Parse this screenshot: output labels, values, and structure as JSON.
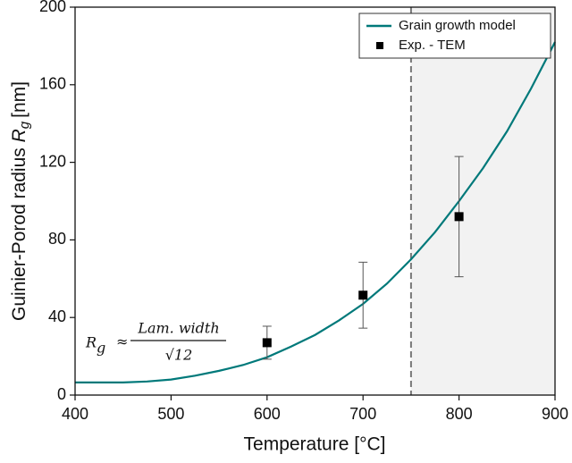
{
  "chart_data": {
    "type": "line",
    "xlabel": "Temperature [°C]",
    "ylabel": "Guinier-Porod radius",
    "ylabel_symbol": "R",
    "ylabel_subscript": "g",
    "ylabel_unit": "[nm]",
    "xlim": [
      400,
      900
    ],
    "xticks": [
      400,
      500,
      600,
      700,
      800,
      900
    ],
    "ylim": [
      0,
      200
    ],
    "yticks": [
      0,
      40,
      80,
      120,
      160,
      200
    ],
    "vline": 750,
    "legend": "upper right",
    "annotation": {
      "symbol": "R",
      "subscript": "g",
      "relation": "≈",
      "numerator": "Lam. width",
      "denominator": "√12"
    },
    "series": [
      {
        "name": "Grain growth model",
        "type": "line",
        "color": "#00797a",
        "x": [
          400,
          425,
          450,
          475,
          500,
          525,
          550,
          575,
          600,
          625,
          650,
          675,
          700,
          725,
          750,
          775,
          800,
          825,
          850,
          875,
          900
        ],
        "values": [
          6.5,
          6.5,
          6.5,
          7,
          8,
          10,
          12.5,
          15.5,
          19.5,
          25,
          31,
          38.5,
          47,
          57.5,
          70,
          84,
          100,
          117,
          136,
          158,
          182
        ]
      },
      {
        "name": "Exp. - TEM",
        "type": "scatter",
        "color": "#000000",
        "x": [
          600,
          700,
          800
        ],
        "values": [
          27,
          51.5,
          92
        ],
        "errors": [
          8.5,
          17,
          31
        ]
      }
    ]
  }
}
